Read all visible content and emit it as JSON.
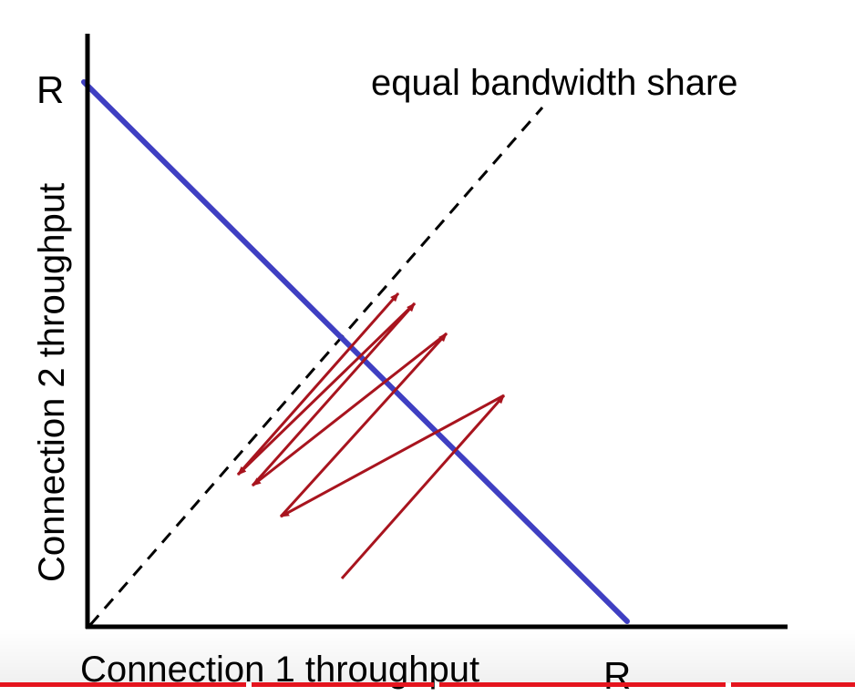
{
  "diagram": {
    "y_axis_label": "Connection 2 throughput",
    "x_axis_label": "Connection 1 throughput",
    "y_max_label": "R",
    "x_max_label": "R",
    "diagonal_label": "equal bandwidth share",
    "colors": {
      "axis": "#000000",
      "capacity_line": "#3f3fc2",
      "arrows": "#a8141e",
      "diagonal": "#000000"
    }
  },
  "video_progress": {
    "color": "#e5141e"
  }
}
